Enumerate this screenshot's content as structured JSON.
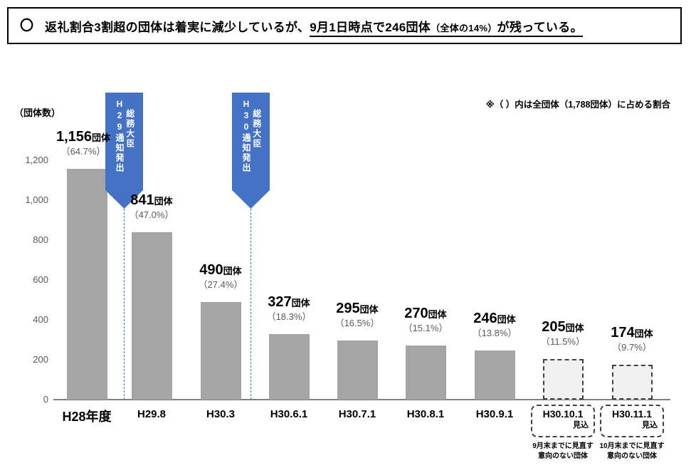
{
  "header": {
    "bullet": "〇",
    "lead": "返礼割合3割超の団体は着実に減少しているが、",
    "underline_big": "9月1日時点で246団体",
    "underline_small": "（全体の14%）",
    "underline_tail": "が残っている。"
  },
  "markers": [
    {
      "col_left": "H29通知発出",
      "col_right": "総務大臣"
    },
    {
      "col_left": "H30通知発出",
      "col_right": "総務大臣"
    }
  ],
  "forecast": {
    "label": "見込",
    "footnotes": [
      "9月末までに見直す\n意向のない団体",
      "10月末までに見直す\n意向のない団体"
    ]
  },
  "chart_data": {
    "type": "bar",
    "title": "",
    "ylabel": "（団体数）",
    "note": "※（ ）内は全団体（1,788団体）に占める割合",
    "ylim": [
      0,
      1200
    ],
    "y_tick_labels": [
      "1,200",
      "1,000",
      "800",
      "600",
      "400",
      "200",
      "0"
    ],
    "categories": [
      "H28年度",
      "H29.8",
      "H30.3",
      "H30.6.1",
      "H30.7.1",
      "H30.8.1",
      "H30.9.1",
      "H30.10.1",
      "H30.11.1"
    ],
    "values": [
      1156,
      841,
      490,
      327,
      295,
      270,
      246,
      205,
      174
    ],
    "value_labels": [
      "1,156",
      "841",
      "490",
      "327",
      "295",
      "270",
      "246",
      "205",
      "174"
    ],
    "unit": "団体",
    "percent_labels": [
      "（64.7%）",
      "（47.0%）",
      "（27.4%）",
      "（18.3%）",
      "（16.5%）",
      "（15.1%）",
      "（13.8%）",
      "（11.5%）",
      "（9.7%）"
    ],
    "forecast_indices": [
      7,
      8
    ],
    "annotations": [
      "H29総務大臣通知発出",
      "H30総務大臣通知発出"
    ],
    "legend": "none",
    "grid": false
  },
  "colors": {
    "bar": "#a5a5a5",
    "forecast_bar_fill": "#f0f0f0",
    "forecast_border": "#404040",
    "marker_blue": "#4472c4",
    "percent_text": "#595959",
    "axis": "#7f7f7f"
  }
}
